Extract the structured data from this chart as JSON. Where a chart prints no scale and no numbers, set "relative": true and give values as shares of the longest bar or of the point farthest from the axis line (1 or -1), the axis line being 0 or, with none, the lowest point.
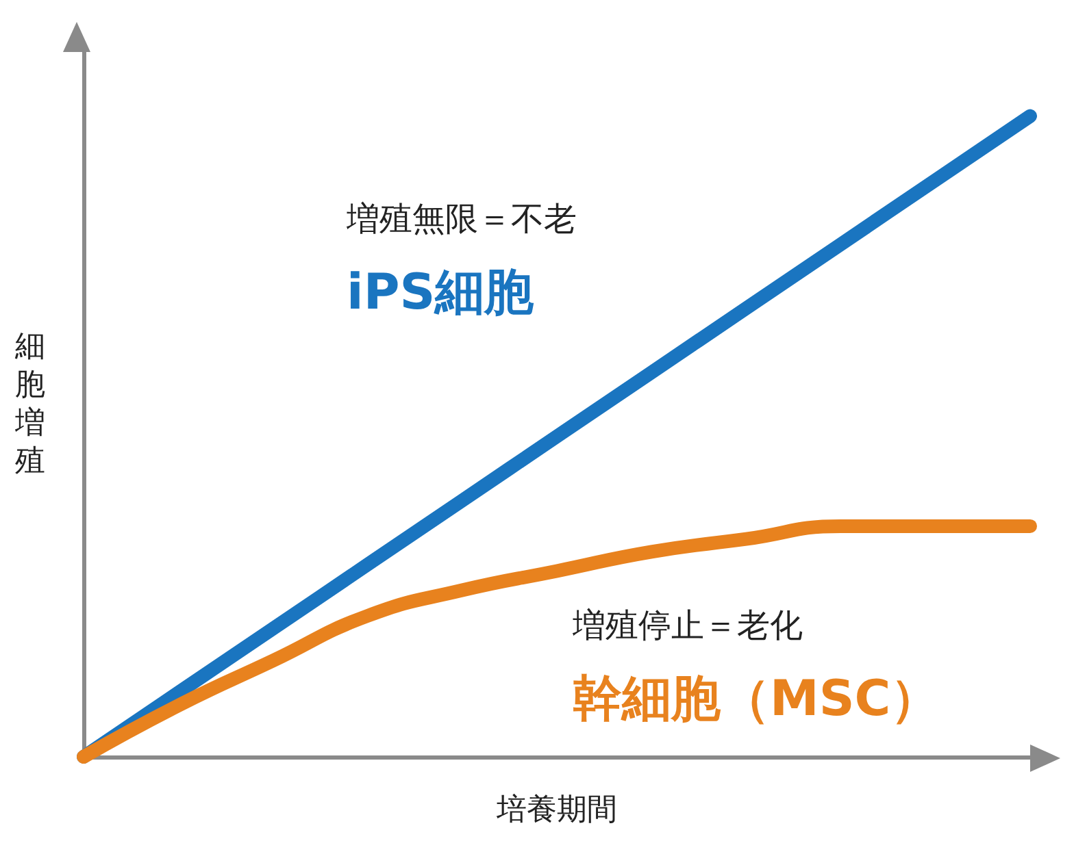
{
  "chart_data": {
    "type": "line",
    "relative": true,
    "xlabel": "培養期間",
    "ylabel": "細胞増殖",
    "categories": [
      null,
      null,
      null,
      null,
      null,
      null,
      null,
      null,
      null,
      null,
      null
    ],
    "series": [
      {
        "name": "iPS細胞",
        "color": "#1a75c0",
        "values": [
          0,
          0.1,
          0.2,
          0.3,
          0.4,
          0.5,
          0.6,
          0.7,
          0.8,
          0.9,
          1
        ]
      },
      {
        "name": "幹細胞（MSC）",
        "color": "#e8821e",
        "values": [
          0,
          0.08,
          0.15,
          0.22,
          0.26,
          0.29,
          0.32,
          0.34,
          0.36,
          0.36,
          0.36
        ]
      }
    ],
    "annotations": [
      "増殖無限＝不老",
      "増殖停止＝老化"
    ],
    "grid": false,
    "legend": false,
    "marker": "none",
    "line_style": "solid"
  }
}
